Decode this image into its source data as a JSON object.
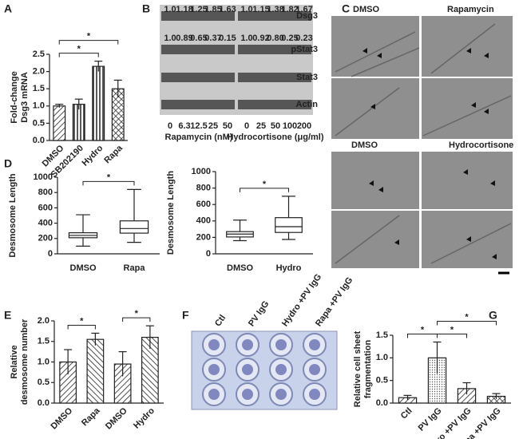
{
  "chart_data": [
    {
      "type": "bar",
      "panel": "A",
      "ylabel": [
        "Fold-change",
        "Dsg3 mRNA"
      ],
      "categories": [
        "DMSO",
        "SB202190",
        "Hydro",
        "Rapa"
      ],
      "values": [
        1.0,
        1.05,
        2.15,
        1.5
      ],
      "errors": [
        0.05,
        0.15,
        0.15,
        0.25
      ],
      "fills": [
        "diagonal",
        "vertical",
        "vertical",
        "crosshatch"
      ],
      "ylim": [
        0,
        2.5
      ],
      "yticks": [
        {
          "value": 0,
          "label": "0.0"
        },
        {
          "value": 0.5,
          "label": "0.5"
        },
        {
          "value": 1,
          "label": "1.0"
        },
        {
          "value": 1.5,
          "label": "1.5"
        },
        {
          "value": 2,
          "label": "2.0"
        },
        {
          "value": 2.5,
          "label": "2.5"
        }
      ],
      "significance": [
        {
          "pair": [
            0,
            2
          ],
          "label": "*"
        },
        {
          "pair": [
            0,
            3
          ],
          "label": "*"
        }
      ]
    },
    {
      "type": "box",
      "panel": "D",
      "ylabel": [
        "Desmosome Length"
      ],
      "categories": [
        "DMSO",
        "Rapa"
      ],
      "boxes": [
        {
          "min": 100,
          "q1": 210,
          "median": 240,
          "q3": 275,
          "max": 510
        },
        {
          "min": 150,
          "q1": 270,
          "median": 330,
          "q3": 430,
          "max": 840
        }
      ],
      "ylim": [
        0,
        1000
      ],
      "yticks": [
        0,
        200,
        400,
        600,
        800,
        1000
      ],
      "significance": [
        {
          "pair": [
            0,
            1
          ],
          "label": "*"
        }
      ]
    },
    {
      "type": "box",
      "ylabel": [
        "Desmosome Length"
      ],
      "categories": [
        "DMSO",
        "Hydro"
      ],
      "boxes": [
        {
          "min": 160,
          "q1": 205,
          "median": 240,
          "q3": 270,
          "max": 410
        },
        {
          "min": 175,
          "q1": 260,
          "median": 330,
          "q3": 440,
          "max": 700
        }
      ],
      "ylim": [
        0,
        1000
      ],
      "yticks": [
        0,
        200,
        400,
        600,
        800,
        1000
      ],
      "significance": [
        {
          "pair": [
            0,
            1
          ],
          "label": "*"
        }
      ]
    },
    {
      "type": "bar",
      "panel": "E",
      "ylabel": [
        "Relative",
        "desmosome number"
      ],
      "categories": [
        "DMSO",
        "Rapa",
        "DMSO",
        "Hydro"
      ],
      "values": [
        1.0,
        1.55,
        0.95,
        1.6
      ],
      "errors": [
        0.3,
        0.15,
        0.3,
        0.28
      ],
      "fills": [
        "diagonal",
        "backdiagonal",
        "diagonal",
        "backdiagonal"
      ],
      "ylim": [
        0,
        2
      ],
      "yticks": [
        {
          "value": 0,
          "label": "0.0"
        },
        {
          "value": 0.5,
          "label": "0.5"
        },
        {
          "value": 1,
          "label": "1.0"
        },
        {
          "value": 1.5,
          "label": "1.5"
        },
        {
          "value": 2,
          "label": "2.0"
        }
      ],
      "significance": [
        {
          "pair": [
            0,
            1
          ],
          "label": "*"
        },
        {
          "pair": [
            2,
            3
          ],
          "label": "*"
        }
      ]
    },
    {
      "type": "bar",
      "panel": "G",
      "ylabel": [
        "Relative cell sheet",
        "fragmentation"
      ],
      "categories": [
        "Ctl",
        "PV IgG",
        "Hydro +PV IgG",
        "Rapa +PV IgG"
      ],
      "values": [
        0.12,
        1.0,
        0.32,
        0.15
      ],
      "errors": [
        0.05,
        0.35,
        0.13,
        0.06
      ],
      "fills": [
        "diagonal",
        "dotted",
        "diagonal",
        "crosshatch"
      ],
      "ylim": [
        0,
        1.5
      ],
      "yticks": [
        {
          "value": 0,
          "label": "0.0"
        },
        {
          "value": 0.5,
          "label": "0.5"
        },
        {
          "value": 1,
          "label": "1.0"
        },
        {
          "value": 1.5,
          "label": "1.5"
        }
      ],
      "significance": [
        {
          "pair": [
            0,
            1
          ],
          "label": "*"
        },
        {
          "pair": [
            1,
            2
          ],
          "label": "*"
        },
        {
          "pair": [
            1,
            3
          ],
          "label": "*"
        }
      ]
    }
  ],
  "blot": {
    "panel": "B",
    "rows": [
      "Dsg3",
      "pStat3",
      "Stat3",
      "Actin"
    ],
    "rapamycin": {
      "dsg3": [
        "1.0",
        "1.18",
        "1.25",
        "1.85",
        "1.63"
      ],
      "pstat3": [
        "1.0",
        "0.89",
        "0.65",
        "0.37",
        "0.15"
      ],
      "doses": [
        "0",
        "6.3",
        "12.5",
        "25",
        "50"
      ],
      "label": "Rapamycin (nM)"
    },
    "hydrocortisone": {
      "dsg3": [
        "1.0",
        "1.15",
        "1.38",
        "1.82",
        "1.67"
      ],
      "pstat3": [
        "1.0",
        "0.92",
        "0.80",
        "0.25",
        "0.23"
      ],
      "doses": [
        "0",
        "25",
        "50",
        "100",
        "200"
      ],
      "label": "Hydrocortisone (μg/ml)"
    }
  },
  "micrographs": {
    "panel": "C",
    "labels": [
      "DMSO",
      "Rapamycin",
      "DMSO",
      "Hydrocortisone"
    ]
  },
  "plate": {
    "panel": "F",
    "labels": [
      "Ctl",
      "PV IgG",
      "Hydro +PV IgG",
      "Rapa +PV IgG"
    ]
  }
}
